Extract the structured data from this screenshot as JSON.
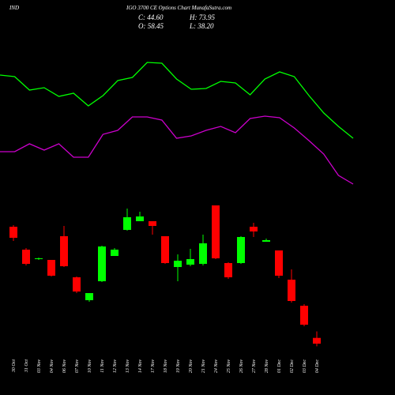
{
  "chart_data": {
    "type": "candlestick",
    "title_left": "IND",
    "title": "IGO 3700 CE Options Chart MunafaSutra.com",
    "summary": [
      "C: 44.60",
      "H: 73.95",
      "O: 58.45",
      "L: 38.20"
    ],
    "categories": [
      "30 Oct",
      "31 Oct",
      "03 Nov",
      "04 Nov",
      "06 Nov",
      "07 Nov",
      "10 Nov",
      "11 Nov",
      "12 Nov",
      "13 Nov",
      "14 Nov",
      "17 Nov",
      "18 Nov",
      "19 Nov",
      "20 Nov",
      "21 Nov",
      "24 Nov",
      "25 Nov",
      "26 Nov",
      "27 Nov",
      "28 Nov",
      "01 Dec",
      "02 Dec",
      "03 Dec",
      "04 Dec"
    ],
    "open": [
      325.8,
      270.7,
      247.9,
      246,
      303,
      204.2,
      149.1,
      194.7,
      255.5,
      318.2,
      339.1,
      339.1,
      303,
      228.9,
      234.6,
      236.5,
      377.1,
      238.4,
      238.4,
      325.8,
      289.7,
      268.8,
      198.5,
      135.8,
      58.45
    ],
    "high": [
      329.6,
      274.5,
      251.7,
      246,
      327.7,
      206.1,
      166.2,
      280.2,
      274.5,
      369.5,
      361.9,
      339.1,
      303,
      259.3,
      272.6,
      306.8,
      377.1,
      240.3,
      303,
      335.3,
      297.3,
      268.8,
      223.2,
      139.6,
      73.95
    ],
    "low": [
      291.6,
      232.7,
      246,
      206.1,
      228.9,
      166.2,
      145.3,
      192.8,
      255.5,
      316.3,
      339.1,
      306.8,
      236.5,
      194.7,
      230.8,
      232.7,
      247.9,
      200.4,
      236.5,
      301.1,
      289.7,
      202.3,
      143.4,
      86.4,
      38.2
    ],
    "close": [
      299.2,
      236.5,
      249.8,
      208,
      230.8,
      170,
      166.2,
      278.3,
      270.7,
      348.6,
      350.5,
      327.7,
      238.4,
      244.1,
      247.9,
      285.9,
      249.8,
      204.2,
      301.1,
      314.4,
      293.5,
      208,
      147.2,
      90.2,
      44.6
    ],
    "up_color": "#00ff00",
    "down_color": "#ff0000",
    "lines": [
      {
        "color": "#00ff00",
        "values": [
          690.6,
          686.8,
          654.5,
          660.2,
          639.3,
          646.9,
          616.5,
          641.2,
          677.3,
          684.9,
          721,
          719.1,
          681.1,
          656.4,
          658.3,
          675.4,
          671.6,
          643.1,
          681.1,
          698.2,
          686.8,
          641.2,
          599.4,
          567.1,
          538.6
        ]
      },
      {
        "color": "#cc00cc",
        "values": [
          506.3,
          506.3,
          525.3,
          510.1,
          525.3,
          493,
          493,
          548.1,
          557.6,
          589.9,
          589.9,
          582.3,
          538.6,
          544.3,
          557.6,
          567.1,
          551.9,
          586.1,
          591.8,
          588,
          563.3,
          532.9,
          500.6,
          449.3,
          428.4
        ]
      }
    ],
    "ylim": [
      16.1,
      757.1
    ]
  }
}
